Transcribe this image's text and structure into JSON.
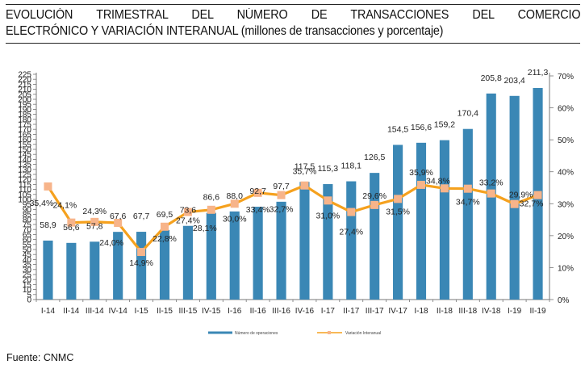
{
  "header": {
    "title_line1": "EVOLUCIÓN TRIMESTRAL DEL NÚMERO DE TRANSACCIONES DEL COMERCIO",
    "title_line2": "ELECTRÓNICO Y VARIACIÓN INTERANUAL (millones de transacciones y porcentaje)"
  },
  "footer": {
    "source": "Fuente: CNMC"
  },
  "colors": {
    "bar": "#3a87b5",
    "line": "#f5a11e",
    "marker": "#f7b48a",
    "axis": "#777777"
  },
  "chart_data": {
    "type": "bar",
    "title": "EVOLUCIÓN TRIMESTRAL DEL NÚMERO DE TRANSACCIONES DEL COMERCIO ELECTRÓNICO Y VARIACIÓN INTERANUAL (millones de transacciones y porcentaje)",
    "categories": [
      "I-14",
      "II-14",
      "III-14",
      "IV-14",
      "I-15",
      "II-15",
      "III-15",
      "IV-15",
      "I-16",
      "II-16",
      "III-16",
      "IV-16",
      "I-17",
      "II-17",
      "III-17",
      "IV-17",
      "I-18",
      "II-18",
      "III-18",
      "IV-18",
      "I-19",
      "II-19"
    ],
    "series": [
      {
        "name": "Número de operaciones",
        "type": "bar",
        "axis": "left",
        "values": [
          58.9,
          56.6,
          57.8,
          67.6,
          67.7,
          69.5,
          73.6,
          86.6,
          88.0,
          92.7,
          97.7,
          117.5,
          115.3,
          118.1,
          126.5,
          154.5,
          156.6,
          159.2,
          170.4,
          205.8,
          203.4,
          211.3
        ],
        "labels": [
          "58,9",
          "56,6",
          "57,8",
          "67,6",
          "67,7",
          "69,5",
          "73,6",
          "86,6",
          "88,0",
          "92,7",
          "97,7",
          "117,5",
          "115,3",
          "118,1",
          "126,5",
          "154,5",
          "156,6",
          "159,2",
          "170,4",
          "205,8",
          "203,4",
          "211,3"
        ]
      },
      {
        "name": "Variación Interanual",
        "type": "line",
        "axis": "right",
        "values": [
          35.4,
          24.1,
          24.3,
          24.0,
          14.9,
          22.8,
          27.4,
          28.1,
          30.0,
          33.4,
          32.7,
          35.7,
          31.0,
          27.4,
          29.6,
          31.5,
          35.9,
          34.8,
          34.7,
          33.2,
          29.9,
          32.7
        ],
        "labels": [
          "35,4%",
          "24,1%",
          "24,3%",
          "24,0%",
          "14,9%",
          "22,8%",
          "27,4%",
          "28,1%",
          "30,0%",
          "33,4%",
          "32,7%",
          "35,7%",
          "31,0%",
          "27,4%",
          "29,6%",
          "31,5%",
          "35,9%",
          "34,8%",
          "34,7%",
          "33,2%",
          "29,9%",
          "32,7%"
        ]
      }
    ],
    "y_left": {
      "min": 0,
      "max": 225,
      "step": 5
    },
    "y_right": {
      "min": 0,
      "max": 70,
      "step": 10,
      "tick_labels": [
        "0%",
        "10%",
        "20%",
        "30%",
        "40%",
        "50%",
        "60%",
        "70%"
      ]
    },
    "legend": {
      "position": "bottom",
      "entries": [
        "Número de operaciones",
        "Variación Interanual"
      ]
    },
    "grid": false,
    "xlabel": "",
    "ylabel": ""
  }
}
